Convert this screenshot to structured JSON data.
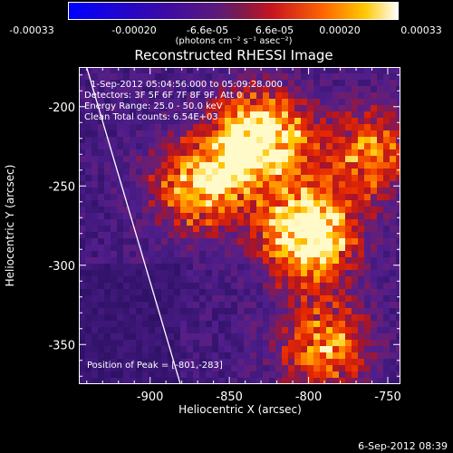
{
  "colorbar": {
    "ticks": [
      "-0.00033",
      "-0.00020",
      "-6.6e-05",
      "6.6e-05",
      "0.00020",
      "0.00033"
    ],
    "units": "(photons cm⁻² s⁻¹ asec⁻²)"
  },
  "header": {
    "title": "Reconstructed RHESSI Image"
  },
  "annotations": {
    "time_range": "1-Sep-2012 05:04:56.000 to 05:09:28.000",
    "detectors": "Detectors: 3F 5F 6F 7F 8F 9F, Att 0",
    "energy": "Energy Range: 25.0 - 50.0 keV",
    "clean": "Clean    Total counts: 6.54E+03",
    "peak": "Position of Peak = [-801,-283]"
  },
  "footer": {
    "timestamp": "6-Sep-2012 08:39"
  },
  "chart_data": {
    "type": "heatmap",
    "title": "Reconstructed RHESSI Image",
    "xlabel": "Heliocentric X (arcsec)",
    "ylabel": "Heliocentric Y (arcsec)",
    "xlim": [
      -945,
      -742
    ],
    "ylim": [
      -375,
      -175
    ],
    "x_ticks": [
      "-900",
      "-850",
      "-800",
      "-750"
    ],
    "x_tick_values": [
      -900,
      -850,
      -800,
      -750
    ],
    "y_ticks": [
      "-200",
      "-250",
      "-300",
      "-350"
    ],
    "y_tick_values": [
      -200,
      -250,
      -300,
      -350
    ],
    "colorbar_range": [
      -0.00033,
      0.00033
    ],
    "colormap": "purple-to-white (hot)",
    "peak_position": [
      -801,
      -283
    ],
    "bright_regions": [
      {
        "x": -830,
        "y": -220,
        "level": 1.0
      },
      {
        "x": -800,
        "y": -280,
        "level": 1.0
      },
      {
        "x": -870,
        "y": -250,
        "level": 0.75
      },
      {
        "x": -790,
        "y": -350,
        "level": 0.65
      },
      {
        "x": -760,
        "y": -230,
        "level": 0.6
      }
    ],
    "limb_line": {
      "from": [
        -941,
        -172
      ],
      "to": [
        -880,
        -378
      ]
    }
  }
}
